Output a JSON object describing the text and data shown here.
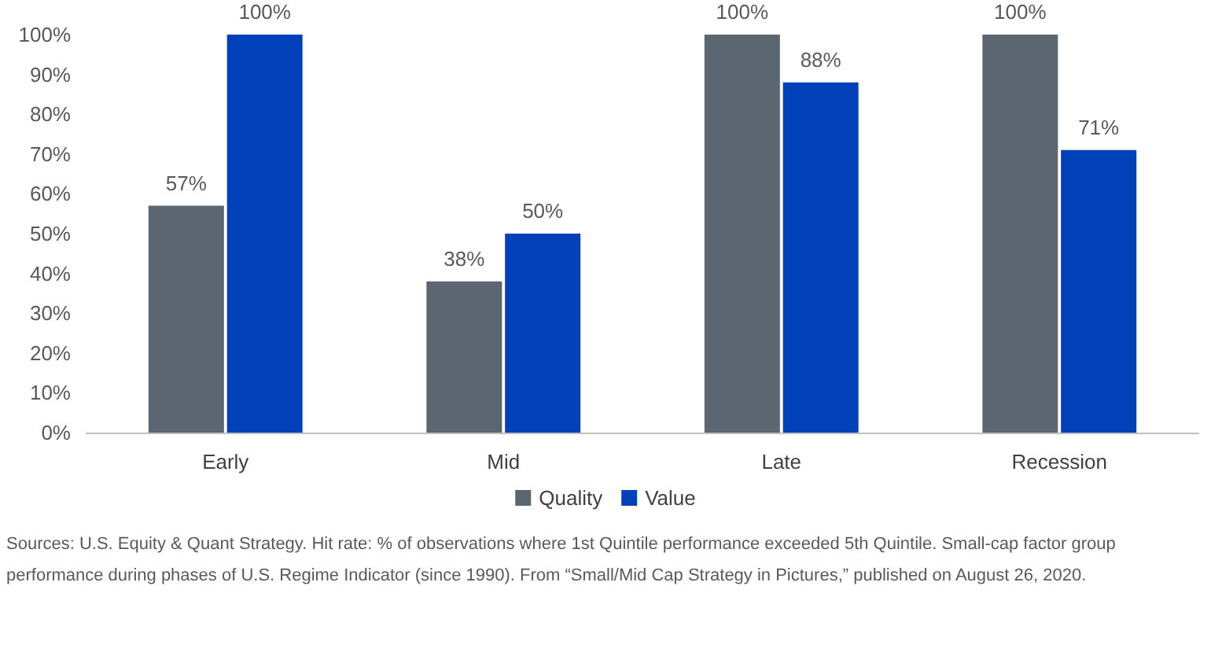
{
  "chart_data": {
    "type": "bar",
    "categories": [
      "Early",
      "Mid",
      "Late",
      "Recession"
    ],
    "series": [
      {
        "name": "Quality",
        "color": "#5b6670",
        "values": [
          57,
          38,
          100,
          100
        ],
        "value_labels": [
          "57%",
          "38%",
          "100%",
          "100%"
        ]
      },
      {
        "name": "Value",
        "color": "#0041b9",
        "values": [
          100,
          50,
          88,
          71
        ],
        "value_labels": [
          "100%",
          "50%",
          "88%",
          "71%"
        ]
      }
    ],
    "ylim": [
      0,
      100
    ],
    "yticks": [
      {
        "value": 0,
        "label": "0%"
      },
      {
        "value": 10,
        "label": "10%"
      },
      {
        "value": 20,
        "label": "20%"
      },
      {
        "value": 30,
        "label": "30%"
      },
      {
        "value": 40,
        "label": "40%"
      },
      {
        "value": 50,
        "label": "50%"
      },
      {
        "value": 60,
        "label": "60%"
      },
      {
        "value": 70,
        "label": "70%"
      },
      {
        "value": 80,
        "label": "80%"
      },
      {
        "value": 90,
        "label": "90%"
      },
      {
        "value": 100,
        "label": "100%"
      }
    ],
    "grid": false,
    "legend": "bottom",
    "annotations": [
      "Sources: U.S. Equity & Quant Strategy. Hit rate: % of observations where 1st Quintile performance exceeded 5th Quintile. Small-cap factor group performance during phases of U.S. Regime Indicator (since 1990). From “Small/Mid Cap Strategy in Pictures,” published on August 26, 2020."
    ]
  }
}
